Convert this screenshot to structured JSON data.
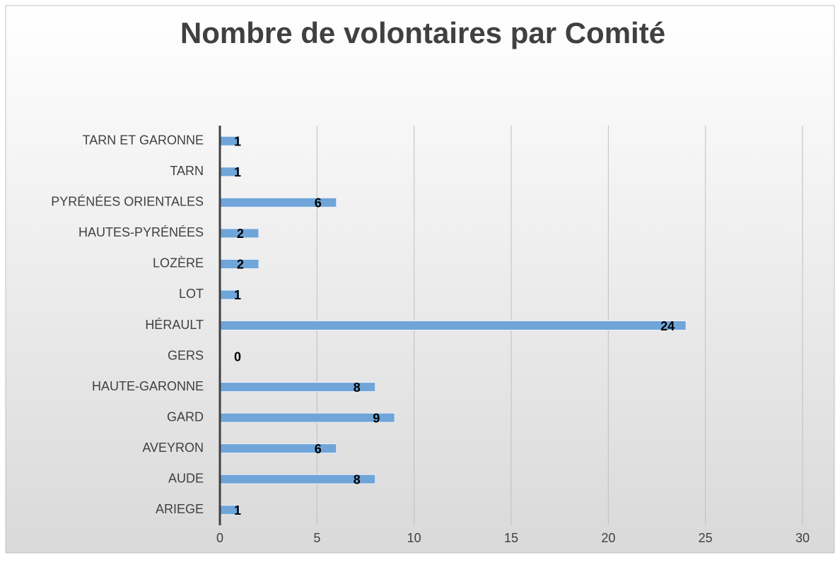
{
  "chart_data": {
    "type": "bar",
    "orientation": "horizontal",
    "title": "Nombre de volontaires par Comité",
    "categories": [
      "ARIEGE",
      "AUDE",
      "AVEYRON",
      "GARD",
      "HAUTE-GARONNE",
      "GERS",
      "HÉRAULT",
      "LOT",
      "LOZÈRE",
      "HAUTES-PYRÉNÉES",
      "PYRÉNÉES ORIENTALES",
      "TARN",
      "TARN ET GARONNE"
    ],
    "values": [
      1,
      8,
      6,
      9,
      8,
      0,
      24,
      1,
      2,
      2,
      6,
      1,
      1
    ],
    "color": "#6fa5d9",
    "xlim": [
      0,
      30
    ],
    "xticks": [
      0,
      5,
      10,
      15,
      20,
      25,
      30
    ],
    "grid": true
  }
}
